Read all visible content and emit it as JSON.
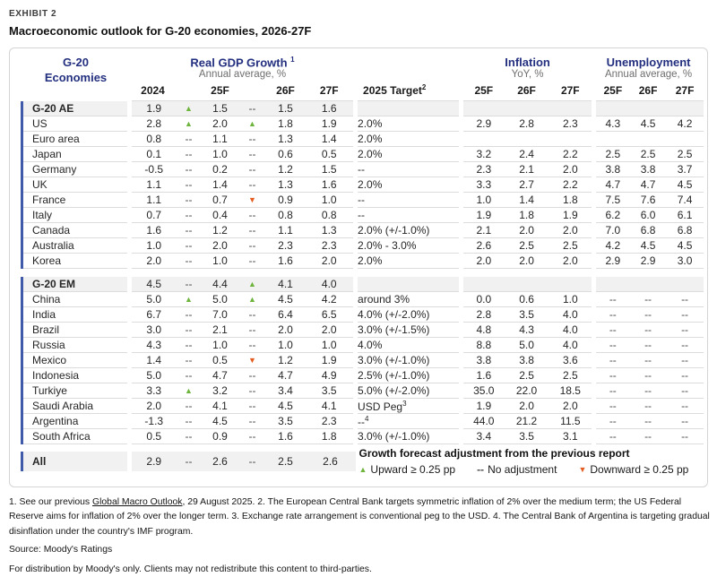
{
  "exhibit": {
    "label": "EXHIBIT 2",
    "title": "Macroeconomic outlook for G-20 economies, 2026-27F"
  },
  "table": {
    "economies_header": "G-20 Economies",
    "col_groups": {
      "gdp": {
        "title": "Real GDP Growth",
        "footnote_ref": "1",
        "subtitle": "Annual average, %"
      },
      "inflation": {
        "title": "Inflation",
        "subtitle": "YoY, %"
      },
      "unemployment": {
        "title": "Unemployment",
        "subtitle": "Annual average, %"
      }
    },
    "columns": {
      "gdp_year": "2024",
      "f25": "25F",
      "f26": "26F",
      "f27": "27F",
      "target": "2025 Target",
      "target_footnote_ref": "2"
    },
    "groups": [
      {
        "name": "g20-advanced",
        "rows": [
          {
            "economy": "G-20 AE",
            "header": true,
            "gdp": [
              "1.9",
              "up",
              "1.5",
              "--",
              "1.5",
              "1.6"
            ],
            "target": "",
            "inflation": [
              "",
              "",
              ""
            ],
            "unemployment": [
              "",
              "",
              ""
            ]
          },
          {
            "economy": "US",
            "gdp": [
              "2.8",
              "up",
              "2.0",
              "up",
              "1.8",
              "1.9"
            ],
            "target": "2.0%",
            "inflation": [
              "2.9",
              "2.8",
              "2.3"
            ],
            "unemployment": [
              "4.3",
              "4.5",
              "4.2"
            ]
          },
          {
            "economy": "Euro area",
            "gdp": [
              "0.8",
              "--",
              "1.1",
              "--",
              "1.3",
              "1.4"
            ],
            "target": "2.0%",
            "inflation": [
              "",
              "",
              ""
            ],
            "unemployment": [
              "",
              "",
              ""
            ]
          },
          {
            "economy": "Japan",
            "gdp": [
              "0.1",
              "--",
              "1.0",
              "--",
              "0.6",
              "0.5"
            ],
            "target": "2.0%",
            "inflation": [
              "3.2",
              "2.4",
              "2.2"
            ],
            "unemployment": [
              "2.5",
              "2.5",
              "2.5"
            ]
          },
          {
            "economy": "Germany",
            "gdp": [
              "-0.5",
              "--",
              "0.2",
              "--",
              "1.2",
              "1.5"
            ],
            "target": "--",
            "inflation": [
              "2.3",
              "2.1",
              "2.0"
            ],
            "unemployment": [
              "3.8",
              "3.8",
              "3.7"
            ]
          },
          {
            "economy": "UK",
            "gdp": [
              "1.1",
              "--",
              "1.4",
              "--",
              "1.3",
              "1.6"
            ],
            "target": "2.0%",
            "inflation": [
              "3.3",
              "2.7",
              "2.2"
            ],
            "unemployment": [
              "4.7",
              "4.7",
              "4.5"
            ]
          },
          {
            "economy": "France",
            "gdp": [
              "1.1",
              "--",
              "0.7",
              "down",
              "0.9",
              "1.0"
            ],
            "target": "--",
            "inflation": [
              "1.0",
              "1.4",
              "1.8"
            ],
            "unemployment": [
              "7.5",
              "7.6",
              "7.4"
            ]
          },
          {
            "economy": "Italy",
            "gdp": [
              "0.7",
              "--",
              "0.4",
              "--",
              "0.8",
              "0.8"
            ],
            "target": "--",
            "inflation": [
              "1.9",
              "1.8",
              "1.9"
            ],
            "unemployment": [
              "6.2",
              "6.0",
              "6.1"
            ]
          },
          {
            "economy": "Canada",
            "gdp": [
              "1.6",
              "--",
              "1.2",
              "--",
              "1.1",
              "1.3"
            ],
            "target": "2.0% (+/-1.0%)",
            "inflation": [
              "2.1",
              "2.0",
              "2.0"
            ],
            "unemployment": [
              "7.0",
              "6.8",
              "6.8"
            ]
          },
          {
            "economy": "Australia",
            "gdp": [
              "1.0",
              "--",
              "2.0",
              "--",
              "2.3",
              "2.3"
            ],
            "target": "2.0% - 3.0%",
            "inflation": [
              "2.6",
              "2.5",
              "2.5"
            ],
            "unemployment": [
              "4.2",
              "4.5",
              "4.5"
            ]
          },
          {
            "economy": "Korea",
            "gdp": [
              "2.0",
              "--",
              "1.0",
              "--",
              "1.6",
              "2.0"
            ],
            "target": "2.0%",
            "inflation": [
              "2.0",
              "2.0",
              "2.0"
            ],
            "unemployment": [
              "2.9",
              "2.9",
              "3.0"
            ]
          }
        ]
      },
      {
        "name": "g20-emerging",
        "rows": [
          {
            "economy": "G-20 EM",
            "header": true,
            "gdp": [
              "4.5",
              "--",
              "4.4",
              "up",
              "4.1",
              "4.0"
            ],
            "target": "",
            "inflation": [
              "",
              "",
              ""
            ],
            "unemployment": [
              "",
              "",
              ""
            ]
          },
          {
            "economy": "China",
            "gdp": [
              "5.0",
              "up",
              "5.0",
              "up",
              "4.5",
              "4.2"
            ],
            "target": "around 3%",
            "inflation": [
              "0.0",
              "0.6",
              "1.0"
            ],
            "unemployment": [
              "--",
              "--",
              "--"
            ]
          },
          {
            "economy": "India",
            "gdp": [
              "6.7",
              "--",
              "7.0",
              "--",
              "6.4",
              "6.5"
            ],
            "target": "4.0% (+/-2.0%)",
            "inflation": [
              "2.8",
              "3.5",
              "4.0"
            ],
            "unemployment": [
              "--",
              "--",
              "--"
            ]
          },
          {
            "economy": "Brazil",
            "gdp": [
              "3.0",
              "--",
              "2.1",
              "--",
              "2.0",
              "2.0"
            ],
            "target": "3.0% (+/-1.5%)",
            "inflation": [
              "4.8",
              "4.3",
              "4.0"
            ],
            "unemployment": [
              "--",
              "--",
              "--"
            ]
          },
          {
            "economy": "Russia",
            "gdp": [
              "4.3",
              "--",
              "1.0",
              "--",
              "1.0",
              "1.0"
            ],
            "target": "4.0%",
            "inflation": [
              "8.8",
              "5.0",
              "4.0"
            ],
            "unemployment": [
              "--",
              "--",
              "--"
            ]
          },
          {
            "economy": "Mexico",
            "gdp": [
              "1.4",
              "--",
              "0.5",
              "down",
              "1.2",
              "1.9"
            ],
            "target": "3.0% (+/-1.0%)",
            "inflation": [
              "3.8",
              "3.8",
              "3.6"
            ],
            "unemployment": [
              "--",
              "--",
              "--"
            ]
          },
          {
            "economy": "Indonesia",
            "gdp": [
              "5.0",
              "--",
              "4.7",
              "--",
              "4.7",
              "4.9"
            ],
            "target": "2.5% (+/-1.0%)",
            "inflation": [
              "1.6",
              "2.5",
              "2.5"
            ],
            "unemployment": [
              "--",
              "--",
              "--"
            ]
          },
          {
            "economy": "Turkiye",
            "gdp": [
              "3.3",
              "up",
              "3.2",
              "--",
              "3.4",
              "3.5"
            ],
            "target": "5.0% (+/-2.0%)",
            "inflation": [
              "35.0",
              "22.0",
              "18.5"
            ],
            "unemployment": [
              "--",
              "--",
              "--"
            ]
          },
          {
            "economy": "Saudi Arabia",
            "gdp": [
              "2.0",
              "--",
              "4.1",
              "--",
              "4.5",
              "4.1"
            ],
            "target": "USD Peg",
            "target_footnote_ref": "3",
            "inflation": [
              "1.9",
              "2.0",
              "2.0"
            ],
            "unemployment": [
              "--",
              "--",
              "--"
            ]
          },
          {
            "economy": "Argentina",
            "gdp": [
              "-1.3",
              "--",
              "4.5",
              "--",
              "3.5",
              "2.3"
            ],
            "target": "--",
            "target_footnote_ref": "4",
            "inflation": [
              "44.0",
              "21.2",
              "11.5"
            ],
            "unemployment": [
              "--",
              "--",
              "--"
            ]
          },
          {
            "economy": "South Africa",
            "gdp": [
              "0.5",
              "--",
              "0.9",
              "--",
              "1.6",
              "1.8"
            ],
            "target": "3.0% (+/-1.0%)",
            "inflation": [
              "3.4",
              "3.5",
              "3.1"
            ],
            "unemployment": [
              "--",
              "--",
              "--"
            ]
          }
        ]
      }
    ],
    "summary_row": {
      "economy": "All",
      "gdp": [
        "2.9",
        "--",
        "2.6",
        "--",
        "2.5",
        "2.6"
      ]
    }
  },
  "legend": {
    "title": "Growth forecast adjustment from the previous report",
    "items": [
      {
        "icon": "up-triangle",
        "glyph": "▲",
        "label": "Upward ≥ 0.25 pp"
      },
      {
        "icon": "dash",
        "glyph": "--",
        "label": "No adjustment"
      },
      {
        "icon": "down-triangle",
        "glyph": "▼",
        "label": "Downward ≥ 0.25 pp"
      }
    ]
  },
  "footnotes": {
    "line1_pre": "1. See our previous ",
    "line1_link": "Global Macro Outlook",
    "line1_post": ", 29 August 2025. 2. The European Central Bank targets symmetric inflation of 2% over the medium term; the US Federal Reserve aims for inflation of 2% over the longer term. 3. Exchange rate arrangement is conventional peg to the USD. 4. The Central Bank of Argentina is targeting gradual disinflation under the country's IMF program.",
    "source": "Source: Moody's Ratings",
    "distribution": "For distribution by Moody's only. Clients may not redistribute this content to third-parties."
  },
  "colors": {
    "heading_navy": "#232f7f",
    "upward_green": "#6eb43d",
    "downward_orange": "#e55c20",
    "group_row_bg": "#f1f1f1",
    "rule_gray": "#dcdcdc"
  }
}
